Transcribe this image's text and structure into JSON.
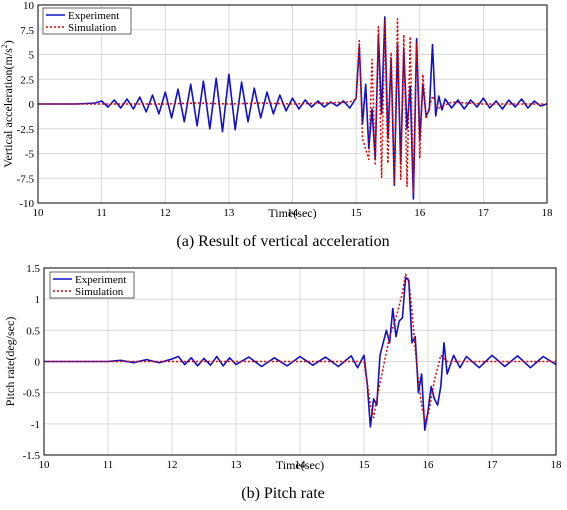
{
  "colors": {
    "experiment": "#1010c8",
    "simulation": "#e00000",
    "grid": "#d9d9d9",
    "axis": "#000000"
  },
  "chart_data": [
    {
      "type": "line",
      "caption": "(a) Result of vertical acceleration",
      "xlabel": "Time(sec)",
      "ylabel": "Vertical acceleration(m/s",
      "ylabel_sup": "2",
      "ylabel_close": ")",
      "xlim": [
        10,
        18
      ],
      "ylim": [
        -10,
        10
      ],
      "xticks": [
        "10",
        "11",
        "12",
        "13",
        "14",
        "15",
        "16",
        "17",
        "18"
      ],
      "yticks": [
        "-10",
        "-7.5",
        "-5",
        "-2.5",
        "0",
        "2.5",
        "5",
        "7.5",
        "10"
      ],
      "grid": true,
      "legend_position": "top-left",
      "series": [
        {
          "name": "Experiment",
          "style": "solid",
          "x": [
            10.0,
            10.3,
            10.6,
            10.9,
            11.0,
            11.1,
            11.2,
            11.3,
            11.4,
            11.5,
            11.6,
            11.7,
            11.8,
            11.9,
            12.0,
            12.1,
            12.2,
            12.3,
            12.4,
            12.5,
            12.6,
            12.7,
            12.8,
            12.9,
            13.0,
            13.1,
            13.2,
            13.3,
            13.4,
            13.5,
            13.6,
            13.7,
            13.8,
            13.9,
            14.0,
            14.1,
            14.2,
            14.3,
            14.4,
            14.5,
            14.6,
            14.7,
            14.8,
            14.9,
            15.0,
            15.05,
            15.1,
            15.15,
            15.2,
            15.25,
            15.3,
            15.35,
            15.4,
            15.45,
            15.5,
            15.55,
            15.6,
            15.65,
            15.7,
            15.75,
            15.8,
            15.85,
            15.9,
            15.95,
            16.0,
            16.05,
            16.1,
            16.15,
            16.2,
            16.25,
            16.3,
            16.35,
            16.4,
            16.5,
            16.6,
            16.7,
            16.8,
            16.9,
            17.0,
            17.1,
            17.2,
            17.3,
            17.4,
            17.5,
            17.6,
            17.7,
            17.8,
            17.9,
            18.0
          ],
          "values": [
            0.0,
            0.0,
            0.0,
            0.1,
            0.3,
            -0.3,
            0.4,
            -0.4,
            0.5,
            -0.5,
            0.7,
            -0.8,
            0.9,
            -1.0,
            1.2,
            -1.4,
            1.5,
            -1.8,
            2.0,
            -2.2,
            2.3,
            -2.5,
            2.6,
            -2.8,
            3.0,
            -2.6,
            2.2,
            -1.8,
            1.6,
            -1.4,
            1.2,
            -1.0,
            0.9,
            -0.7,
            0.6,
            -0.5,
            0.4,
            -0.3,
            0.3,
            -0.3,
            0.2,
            -0.2,
            0.3,
            -0.4,
            0.6,
            5.8,
            -2.0,
            2.0,
            -4.5,
            -0.5,
            -5.6,
            7.0,
            -1.0,
            8.8,
            -3.5,
            4.6,
            -8.2,
            6.0,
            -6.0,
            5.5,
            -2.5,
            1.8,
            -9.6,
            6.6,
            -3.6,
            2.0,
            -1.2,
            -0.6,
            6.0,
            -1.2,
            0.8,
            -0.6,
            0.5,
            -0.4,
            0.4,
            -0.5,
            0.4,
            -0.3,
            0.6,
            -0.4,
            0.3,
            -0.5,
            0.4,
            -0.3,
            0.5,
            -0.4,
            0.3,
            -0.2,
            0.0
          ]
        },
        {
          "name": "Simulation",
          "style": "dotted",
          "x": [
            10.0,
            10.5,
            11.0,
            11.5,
            12.0,
            12.5,
            13.0,
            13.5,
            14.0,
            14.5,
            14.9,
            15.0,
            15.05,
            15.1,
            15.2,
            15.25,
            15.3,
            15.35,
            15.4,
            15.45,
            15.5,
            15.55,
            15.6,
            15.65,
            15.7,
            15.75,
            15.8,
            15.85,
            15.9,
            15.95,
            16.0,
            16.05,
            16.1,
            16.2,
            16.3,
            16.5,
            17.0,
            17.5,
            18.0
          ],
          "values": [
            0.0,
            0.0,
            0.0,
            0.0,
            0.0,
            0.1,
            0.0,
            0.1,
            0.0,
            0.1,
            0.2,
            0.5,
            6.4,
            -3.5,
            -5.6,
            4.5,
            -6.2,
            7.8,
            -7.4,
            8.4,
            -6.0,
            5.2,
            -8.0,
            8.6,
            -7.6,
            7.0,
            -8.3,
            6.8,
            -9.0,
            6.2,
            -5.5,
            3.0,
            -1.5,
            0.8,
            -0.4,
            0.2,
            0.0,
            0.0,
            0.0
          ]
        }
      ]
    },
    {
      "type": "line",
      "caption": "(b) Pitch rate",
      "xlabel": "Time(sec)",
      "ylabel": "Pitch rate(deg/sec)",
      "xlim": [
        10,
        18
      ],
      "ylim": [
        -1.5,
        1.5
      ],
      "xticks": [
        "10",
        "11",
        "12",
        "13",
        "14",
        "15",
        "16",
        "17",
        "18"
      ],
      "yticks": [
        "-1.5",
        "-1",
        "-0.5",
        "0",
        "0.5",
        "1",
        "1.5"
      ],
      "grid": true,
      "legend_position": "top-left",
      "series": [
        {
          "name": "Experiment",
          "style": "solid",
          "x": [
            10.0,
            10.5,
            11.0,
            11.2,
            11.4,
            11.6,
            11.8,
            12.0,
            12.1,
            12.2,
            12.3,
            12.4,
            12.5,
            12.6,
            12.7,
            12.8,
            12.9,
            13.0,
            13.2,
            13.4,
            13.6,
            13.8,
            14.0,
            14.2,
            14.4,
            14.6,
            14.8,
            14.9,
            15.0,
            15.05,
            15.1,
            15.15,
            15.2,
            15.25,
            15.3,
            15.35,
            15.4,
            15.45,
            15.5,
            15.55,
            15.6,
            15.65,
            15.7,
            15.75,
            15.8,
            15.85,
            15.9,
            15.95,
            16.0,
            16.05,
            16.1,
            16.15,
            16.2,
            16.25,
            16.3,
            16.4,
            16.5,
            16.6,
            16.8,
            17.0,
            17.2,
            17.4,
            17.6,
            17.8,
            18.0
          ],
          "values": [
            0.0,
            0.0,
            0.0,
            0.02,
            -0.02,
            0.03,
            -0.02,
            0.04,
            0.08,
            -0.05,
            0.06,
            -0.07,
            0.05,
            -0.06,
            0.08,
            -0.07,
            0.06,
            -0.05,
            0.07,
            -0.08,
            0.06,
            -0.07,
            0.08,
            -0.06,
            0.07,
            -0.08,
            0.09,
            -0.1,
            0.1,
            -0.35,
            -1.05,
            -0.6,
            -0.7,
            0.1,
            0.3,
            0.5,
            0.3,
            0.85,
            0.4,
            0.65,
            0.7,
            1.35,
            1.3,
            0.3,
            0.4,
            -0.5,
            -0.2,
            -1.1,
            -0.8,
            -0.4,
            -0.6,
            -0.7,
            -0.4,
            0.3,
            -0.2,
            0.1,
            -0.1,
            0.08,
            -0.1,
            0.1,
            -0.08,
            0.09,
            -0.1,
            0.08,
            -0.05
          ]
        },
        {
          "name": "Simulation",
          "style": "dotted",
          "x": [
            10.0,
            11.0,
            12.0,
            13.0,
            14.0,
            14.9,
            15.0,
            15.1,
            15.15,
            15.2,
            15.3,
            15.4,
            15.5,
            15.55,
            15.6,
            15.65,
            15.7,
            15.75,
            15.8,
            15.85,
            15.9,
            15.95,
            16.0,
            16.05,
            16.1,
            16.2,
            16.3,
            16.5,
            17.0,
            18.0
          ],
          "values": [
            0.0,
            0.0,
            0.0,
            0.0,
            0.0,
            0.0,
            0.0,
            -0.7,
            -0.9,
            -0.6,
            -0.1,
            0.4,
            0.7,
            0.9,
            1.1,
            1.4,
            1.3,
            0.8,
            0.2,
            -0.3,
            -0.7,
            -0.95,
            -0.85,
            -0.6,
            -0.3,
            0.1,
            0.0,
            0.0,
            0.0,
            0.0
          ]
        }
      ]
    }
  ]
}
